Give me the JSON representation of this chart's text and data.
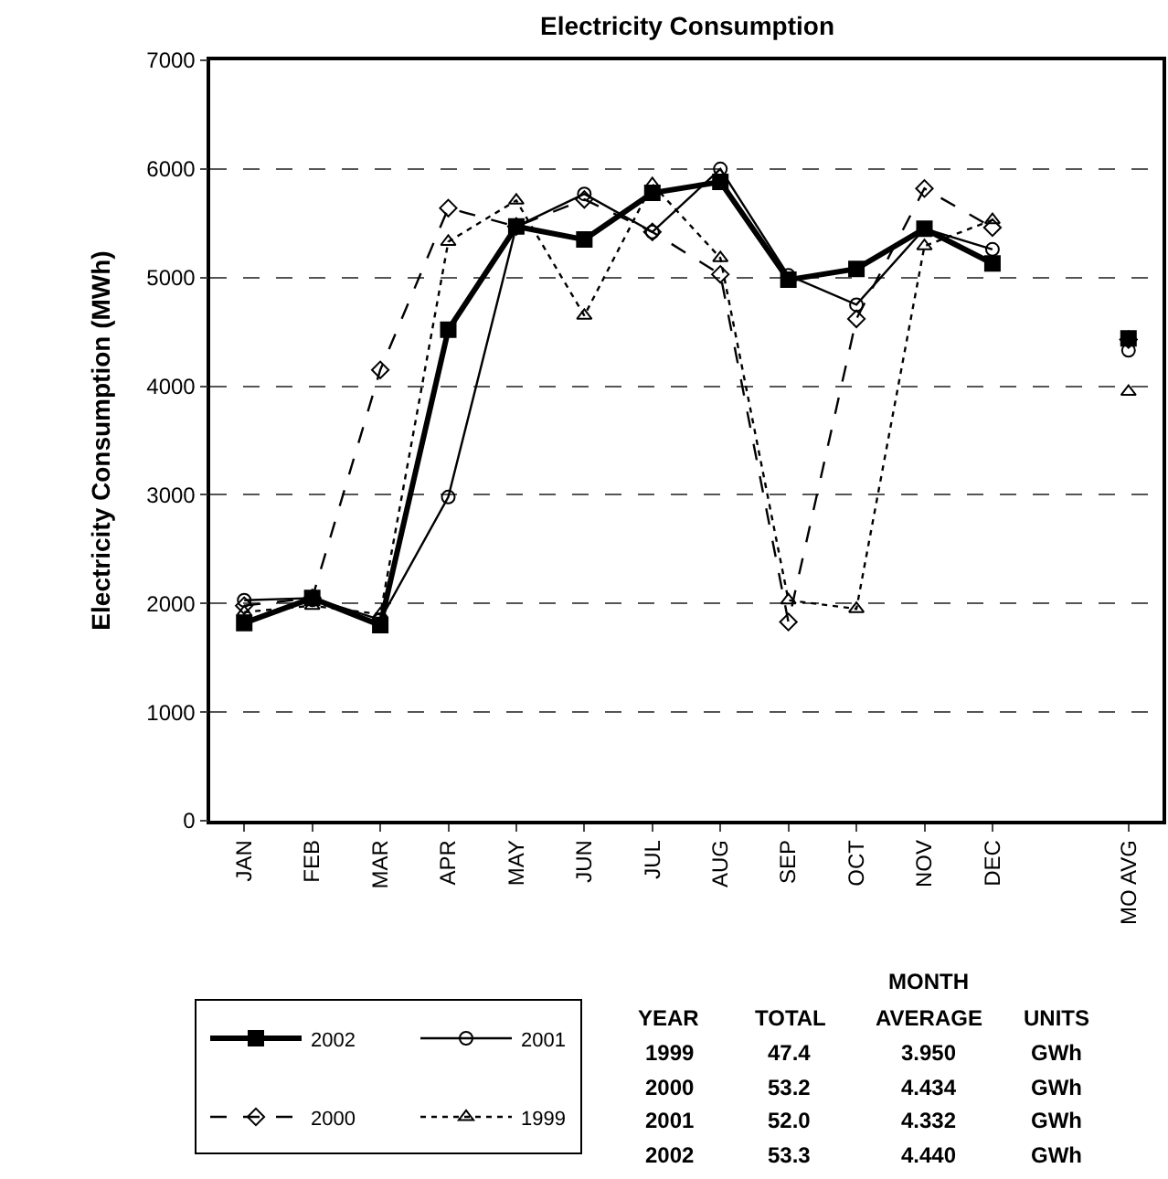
{
  "chart_data": {
    "type": "line",
    "title": "Electricity Consumption",
    "ylabel": "Electricity Consumption (MWh)",
    "categories": [
      "JAN",
      "FEB",
      "MAR",
      "APR",
      "MAY",
      "JUN",
      "JUL",
      "AUG",
      "SEP",
      "OCT",
      "NOV",
      "DEC",
      null,
      "MO AVG"
    ],
    "series": [
      {
        "name": "2002",
        "color": "#000000",
        "marker": "square",
        "line_style": "solid",
        "values": [
          1820,
          2050,
          1800,
          4520,
          5470,
          5350,
          5780,
          5880,
          4980,
          5080,
          5450,
          5130,
          null,
          4440
        ]
      },
      {
        "name": "2001",
        "color": "#000000",
        "marker": "circle",
        "line_style": "solid",
        "values": [
          2030,
          2050,
          1850,
          2980,
          5470,
          5770,
          5420,
          6000,
          5020,
          4750,
          5450,
          5260,
          null,
          4330
        ]
      },
      {
        "name": "2000",
        "color": "#000000",
        "marker": "diamond",
        "line_style": "dashed",
        "values": [
          1980,
          2050,
          4150,
          5640,
          5470,
          5720,
          5420,
          5030,
          1830,
          4620,
          5820,
          5460,
          null,
          4430
        ]
      },
      {
        "name": "1999",
        "color": "#000000",
        "marker": "triangle",
        "line_style": "dotted",
        "values": [
          1920,
          1980,
          1900,
          5330,
          5710,
          4650,
          5860,
          5180,
          2030,
          1950,
          5290,
          5530,
          null,
          3950
        ]
      }
    ],
    "ylim": [
      0,
      7000
    ],
    "yticks": [
      0,
      1000,
      2000,
      3000,
      4000,
      5000,
      6000,
      7000
    ],
    "grid": "y",
    "legend": "bottom left",
    "annotations": [
      "MONTH",
      "YEAR",
      "TOTAL",
      "AVERAGE",
      "UNITS",
      "1999",
      "47.4",
      "3.950",
      "GWh",
      "2000",
      "53.2",
      "4.434",
      "GWh",
      "2001",
      "52.0",
      "4.332",
      "GWh",
      "2002",
      "53.3",
      "4.440",
      "GWh"
    ]
  }
}
